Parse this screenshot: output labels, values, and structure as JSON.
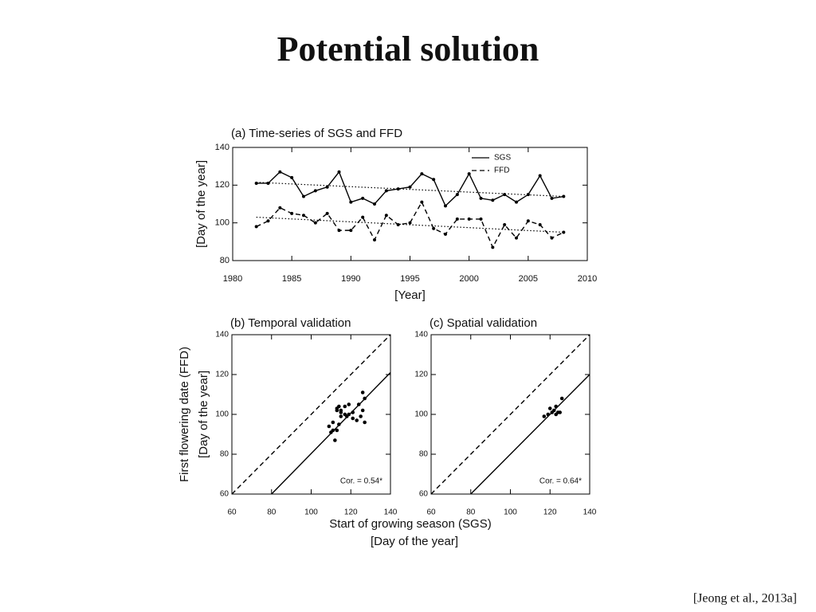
{
  "title": "Potential solution",
  "citation": "[Jeong et al., 2013a]",
  "bottom_xlabel": [
    "Start of growing season (SGS)",
    "[Day of the year]"
  ],
  "chart_data": [
    {
      "type": "line",
      "title": "(a) Time-series of SGS and FFD",
      "xlabel": "[Year]",
      "ylabel": [
        "[Day of the year]"
      ],
      "x": [
        1982,
        1983,
        1984,
        1985,
        1986,
        1987,
        1988,
        1989,
        1990,
        1991,
        1992,
        1993,
        1994,
        1995,
        1996,
        1997,
        1998,
        1999,
        2000,
        2001,
        2002,
        2003,
        2004,
        2005,
        2006,
        2007,
        2008
      ],
      "series": [
        {
          "name": "SGS",
          "color": "#000000",
          "style": "solid",
          "values": [
            121,
            121,
            127,
            124,
            114,
            117,
            119,
            127,
            111,
            113,
            110,
            117,
            118,
            119,
            126,
            123,
            109,
            115,
            126,
            113,
            112,
            115,
            111,
            115,
            125,
            113,
            114
          ]
        },
        {
          "name": "FFD",
          "color": "#000000",
          "style": "dashed",
          "values": [
            98,
            101,
            108,
            105,
            104,
            100,
            105,
            96,
            96,
            103,
            91,
            104,
            99,
            100,
            111,
            97,
            94,
            102,
            102,
            102,
            87,
            99,
            92,
            101,
            99,
            92,
            95
          ]
        }
      ],
      "lines": [
        {
          "style": "dotted",
          "x": [
            1982,
            2008
          ],
          "values": [
            121.5,
            114
          ]
        },
        {
          "style": "dotted",
          "x": [
            1982,
            2008
          ],
          "values": [
            103,
            95
          ]
        }
      ],
      "legend": "upper right",
      "xlim": [
        1980,
        2010
      ],
      "xticks": [
        1980,
        1985,
        1990,
        1995,
        2000,
        2005,
        2010
      ],
      "ylim": [
        80,
        140
      ],
      "yticks": [
        80,
        100,
        120,
        140
      ]
    },
    {
      "type": "scatter",
      "title": "(b) Temporal validation",
      "ylabel": [
        "First flowering date (FFD)",
        "[Day of the year]"
      ],
      "annotation": "Cor. = 0.54*",
      "x": [
        121,
        121,
        127,
        124,
        114,
        117,
        119,
        127,
        111,
        113,
        110,
        117,
        118,
        119,
        126,
        123,
        109,
        115,
        126,
        113,
        112,
        115,
        111,
        115,
        125,
        113,
        114
      ],
      "values": [
        98,
        101,
        108,
        105,
        104,
        100,
        105,
        96,
        96,
        103,
        91,
        104,
        99,
        100,
        111,
        97,
        94,
        102,
        102,
        102,
        87,
        99,
        92,
        101,
        99,
        92,
        95
      ],
      "color": "#000000",
      "lines": [
        {
          "style": "dashed",
          "x": [
            60,
            140
          ],
          "values": [
            60,
            140
          ]
        },
        {
          "style": "solid",
          "x": [
            80,
            140
          ],
          "values": [
            60,
            121
          ]
        }
      ],
      "xlim": [
        60,
        140
      ],
      "xticks": [
        60,
        80,
        100,
        120,
        140
      ],
      "ylim": [
        60,
        140
      ],
      "yticks": [
        60,
        80,
        100,
        120,
        140
      ]
    },
    {
      "type": "scatter",
      "title": "(c) Spatial validation",
      "annotation": "Cor. = 0.64*",
      "x": [
        117,
        119,
        120,
        121,
        122,
        123,
        123,
        124,
        125,
        126
      ],
      "values": [
        99,
        100,
        103,
        101,
        102,
        104,
        100,
        101,
        101,
        108
      ],
      "color": "#000000",
      "lines": [
        {
          "style": "dashed",
          "x": [
            60,
            140
          ],
          "values": [
            60,
            140
          ]
        },
        {
          "style": "solid",
          "x": [
            80,
            140
          ],
          "values": [
            60,
            120
          ]
        }
      ],
      "xlim": [
        60,
        140
      ],
      "xticks": [
        60,
        80,
        100,
        120,
        140
      ],
      "ylim": [
        60,
        140
      ],
      "yticks": [
        60,
        80,
        100,
        120,
        140
      ]
    }
  ]
}
